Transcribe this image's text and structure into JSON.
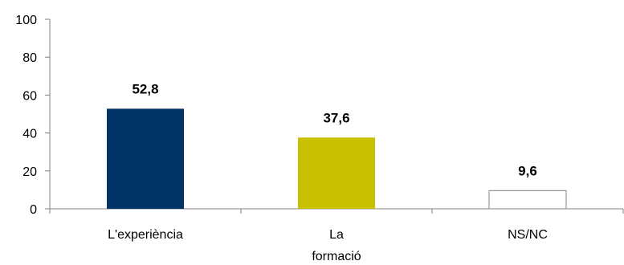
{
  "chart_data": {
    "type": "bar",
    "title": "",
    "xlabel": "",
    "ylabel": "",
    "categories": [
      [
        "L'experiència"
      ],
      [
        "La",
        "formació"
      ],
      [
        "NS/NC"
      ]
    ],
    "values": [
      52.8,
      37.6,
      9.6
    ],
    "value_labels": [
      "52,8",
      "37,6",
      "9,6"
    ],
    "bar_colors": [
      "#003366",
      "#c8c000",
      "#ffffff"
    ],
    "bar_stroke": "#808080",
    "ylim": [
      0,
      100
    ],
    "yticks": [
      0,
      20,
      40,
      60,
      80,
      100
    ],
    "grid": false,
    "legend": false
  }
}
